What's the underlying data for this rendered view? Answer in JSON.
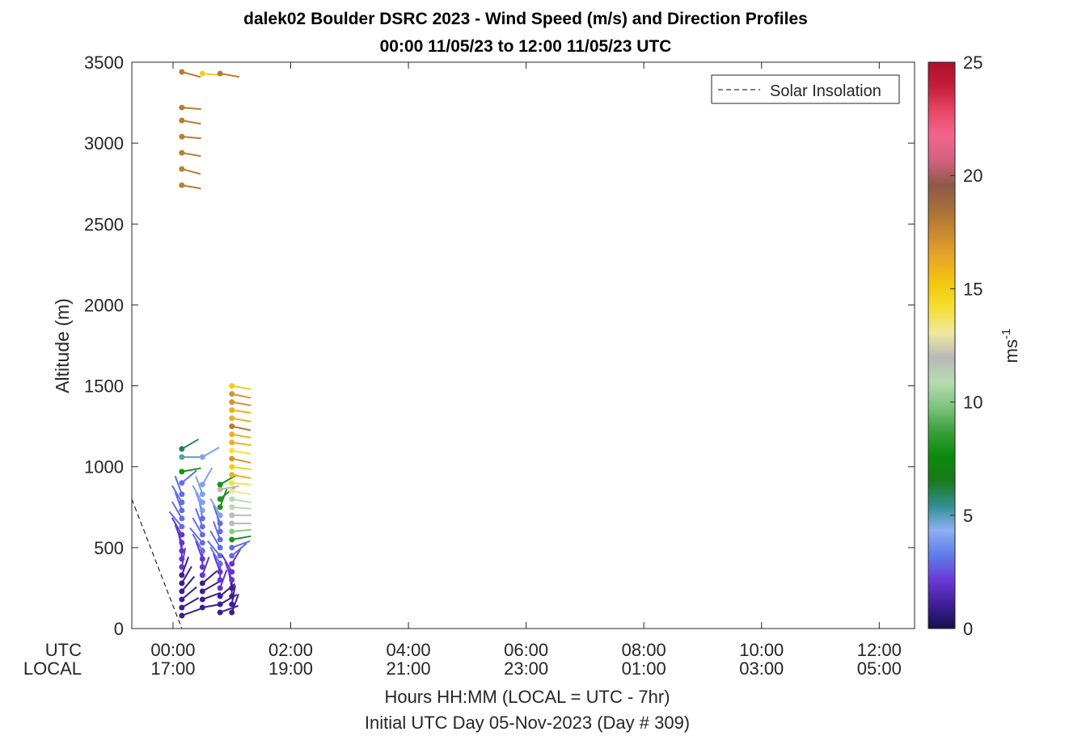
{
  "chart_data": {
    "type": "scatter",
    "title": [
      "dalek02 Boulder DSRC 2023 - Wind Speed (m/s) and Direction Profiles",
      "00:00 11/05/23 to 12:00 11/05/23  UTC"
    ],
    "ylabel": "Altitude (m)",
    "xlabel": "Hours HH:MM  (LOCAL = UTC - 7hr)",
    "xlabel2": "Initial UTC Day 05-Nov-2023 (Day # 309)",
    "x_row_labels": [
      "UTC",
      "LOCAL"
    ],
    "x_ticks_utc": [
      "00:00",
      "02:00",
      "04:00",
      "06:00",
      "08:00",
      "10:00",
      "12:00"
    ],
    "x_ticks_local": [
      "17:00",
      "19:00",
      "21:00",
      "23:00",
      "01:00",
      "03:00",
      "05:00"
    ],
    "xlim_hours": [
      -0.7,
      12.6
    ],
    "ylim": [
      0,
      3500
    ],
    "y_ticks": [
      0,
      500,
      1000,
      1500,
      2000,
      2500,
      3000,
      3500
    ],
    "legend": {
      "label": "Solar Insolation",
      "position": "top-right",
      "style": "dashed"
    },
    "colorbar": {
      "label": "ms-1",
      "range": [
        0,
        25
      ],
      "ticks": [
        0,
        5,
        10,
        15,
        20,
        25
      ],
      "stops": [
        "#14104d",
        "#3f1f99",
        "#6b3ad8",
        "#5f7ee8",
        "#8fb0f2",
        "#2f8f8f",
        "#1a7a1a",
        "#0b8a0b",
        "#3aa03a",
        "#7cc47c",
        "#b8dcb0",
        "#b8b8b8",
        "#eee8a0",
        "#f5df33",
        "#f2c90d",
        "#e8a826",
        "#cc8b2e",
        "#a8703a",
        "#8c5a48",
        "#d4607f",
        "#f2658e",
        "#e84868",
        "#c41e3a",
        "#b0102a"
      ]
    },
    "series": [
      {
        "profiles": [
          {
            "t": 0.15,
            "h": [
              80,
              130,
              180,
              230,
              280,
              330,
              380,
              430,
              480,
              530,
              580,
              630,
              680,
              730,
              780,
              830,
              900,
              970,
              1060,
              1110,
              2740,
              2840,
              2940,
              3040,
              3140,
              3220,
              3440
            ],
            "s": [
              1,
              1,
              1,
              1,
              1,
              1,
              2,
              2,
              2,
              2,
              2,
              3,
              3,
              3,
              3,
              3,
              3,
              8,
              5,
              6,
              18,
              18,
              18,
              18,
              18,
              18,
              18
            ],
            "d": [
              250,
              240,
              230,
              220,
              210,
              200,
              190,
              180,
              170,
              160,
              150,
              140,
              150,
              160,
              150,
              160,
              230,
              260,
              270,
              240,
              280,
              285,
              280,
              275,
              280,
              275,
              285
            ]
          },
          {
            "t": 0.5,
            "h": [
              130,
              180,
              230,
              280,
              330,
              380,
              430,
              480,
              530,
              580,
              630,
              680,
              730,
              780,
              830,
              890,
              1060,
              3430
            ],
            "s": [
              1,
              1,
              1,
              1,
              2,
              2,
              2,
              3,
              3,
              3,
              3,
              3,
              4,
              4,
              4,
              4,
              4,
              15
            ],
            "d": [
              260,
              250,
              240,
              230,
              200,
              180,
              160,
              150,
              140,
              150,
              160,
              170,
              160,
              150,
              160,
              210,
              240,
              275
            ]
          },
          {
            "t": 0.8,
            "h": [
              100,
              150,
              200,
              250,
              300,
              350,
              400,
              450,
              500,
              550,
              600,
              650,
              700,
              750,
              800,
              860,
              890,
              3430
            ],
            "s": [
              1,
              1,
              1,
              2,
              2,
              2,
              3,
              3,
              3,
              3,
              3,
              3,
              4,
              8,
              8,
              12,
              8,
              18
            ],
            "d": [
              250,
              240,
              230,
              200,
              180,
              160,
              150,
              140,
              150,
              160,
              170,
              160,
              150,
              200,
              230,
              260,
              240,
              280
            ]
          },
          {
            "t": 1.0,
            "h": [
              100,
              150,
              200,
              250,
              300,
              350,
              400,
              450,
              500,
              550,
              600,
              650,
              700,
              750,
              800,
              850,
              900,
              950,
              1000,
              1050,
              1100,
              1150,
              1200,
              1250,
              1300,
              1350,
              1400,
              1450,
              1500
            ],
            "s": [
              1,
              1,
              1,
              1,
              2,
              2,
              2,
              3,
              3,
              8,
              10,
              12,
              12,
              11,
              11,
              13,
              14,
              16,
              15,
              17,
              14,
              16,
              16,
              18,
              16,
              16,
              17,
              17,
              15
            ],
            "d": [
              200,
              190,
              180,
              170,
              160,
              150,
              210,
              230,
              250,
              260,
              265,
              270,
              270,
              275,
              280,
              280,
              275,
              280,
              278,
              282,
              280,
              278,
              280,
              282,
              280,
              278,
              280,
              282,
              280
            ]
          }
        ]
      }
    ]
  }
}
